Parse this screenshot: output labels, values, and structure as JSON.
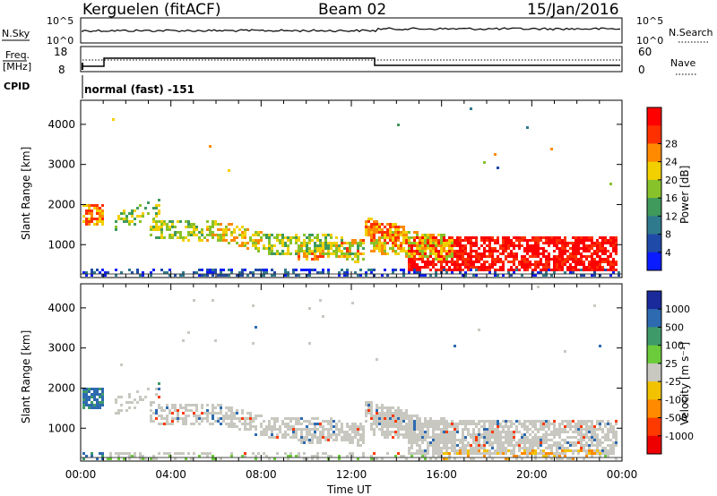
{
  "header": {
    "station": "Kerguelen (fitACF)",
    "beam": "Beam 02",
    "date": "15/Jan/2016"
  },
  "top_panels": {
    "nsky_label": "N.Sky",
    "nsky_ticks": [
      "10^5",
      "10^0"
    ],
    "nsearch_label": "N.Search",
    "nsearch_ticks": [
      "10^5",
      "10^0"
    ],
    "freq_label_1": "Freq.",
    "freq_label_2": "[MHz]",
    "freq_ticks": [
      "18",
      "8"
    ],
    "nave_label": "Nave",
    "nave_ticks": [
      "60",
      "0"
    ],
    "cpid_label": "CPID",
    "cpid_text": "normal (fast) -151"
  },
  "chart_data": [
    {
      "type": "heatmap",
      "name": "power",
      "xlabel": "",
      "ylabel": "Slant Range [km]",
      "xlim": [
        0,
        24
      ],
      "ylim": [
        180,
        4600
      ],
      "yticks": [
        "1000",
        "2000",
        "3000",
        "4000"
      ],
      "colorbar": {
        "label": "Power [dB]",
        "ticks": [
          "4",
          "8",
          "12",
          "16",
          "20",
          "24",
          "28"
        ],
        "colors": [
          "#0a1cff",
          "#1f4aa8",
          "#2f7a8c",
          "#3f9a5c",
          "#88c22a",
          "#f2d000",
          "#ff8a00",
          "#ff3000",
          "#ff0000"
        ]
      }
    },
    {
      "type": "heatmap",
      "name": "velocity",
      "xlabel": "Time UT",
      "ylabel": "Slant Range [km]",
      "xlim": [
        0,
        24
      ],
      "ylim": [
        180,
        4600
      ],
      "yticks": [
        "1000",
        "2000",
        "3000",
        "4000"
      ],
      "xticks": [
        "00:00",
        "04:00",
        "08:00",
        "12:00",
        "16:00",
        "20:00",
        "00:00"
      ],
      "colorbar": {
        "label": "Velocity [m s⁻¹]",
        "ticks": [
          "1000",
          "500",
          "100",
          "25",
          "-25",
          "-100",
          "-500",
          "-1000"
        ],
        "colors": [
          "#1a2a9a",
          "#2d6ab0",
          "#3f9a6a",
          "#6ccb3a",
          "#c8c8c0",
          "#f2c200",
          "#ff8a00",
          "#ff3a00",
          "#ee0000"
        ]
      }
    }
  ]
}
